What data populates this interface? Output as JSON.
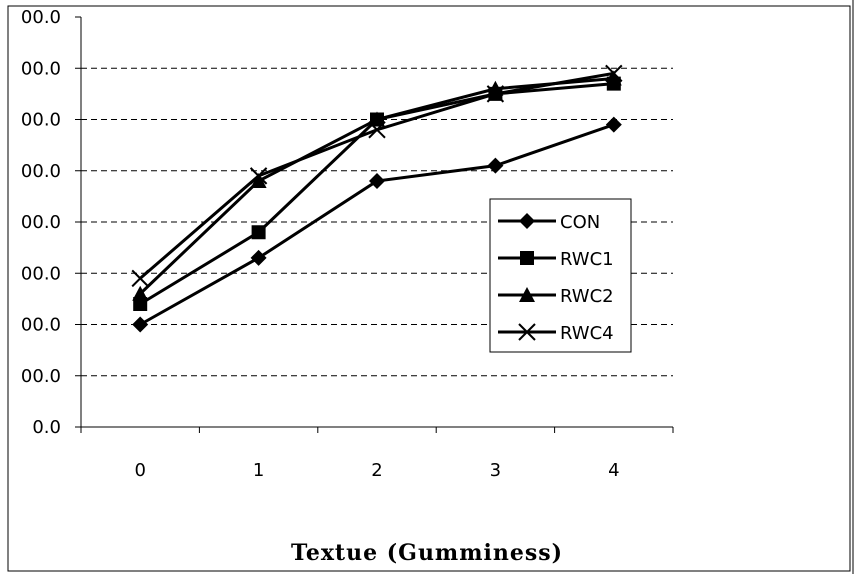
{
  "chart_data": {
    "type": "line",
    "title": "Textue (Gumminess)",
    "xlabel": "",
    "ylabel": "",
    "categories": [
      "0",
      "1",
      "2",
      "3",
      "4"
    ],
    "y_tick_labels": [
      "0.0",
      "00.0",
      "00.0",
      "00.0",
      "00.0",
      "00.0",
      "00.0",
      "00.0",
      "00.0"
    ],
    "ylim": [
      0,
      8
    ],
    "grid": "horizontal-dashed",
    "legend_position": "right",
    "series": [
      {
        "name": "CON",
        "marker": "diamond",
        "values": [
          2.0,
          3.3,
          4.8,
          5.1,
          5.9
        ]
      },
      {
        "name": "RWC1",
        "marker": "square",
        "values": [
          2.4,
          3.8,
          6.0,
          6.5,
          6.7
        ]
      },
      {
        "name": "RWC2",
        "marker": "triangle",
        "values": [
          2.6,
          4.8,
          6.0,
          6.6,
          6.8
        ]
      },
      {
        "name": "RWC4",
        "marker": "x",
        "values": [
          2.9,
          4.9,
          5.8,
          6.5,
          6.9
        ]
      }
    ]
  }
}
